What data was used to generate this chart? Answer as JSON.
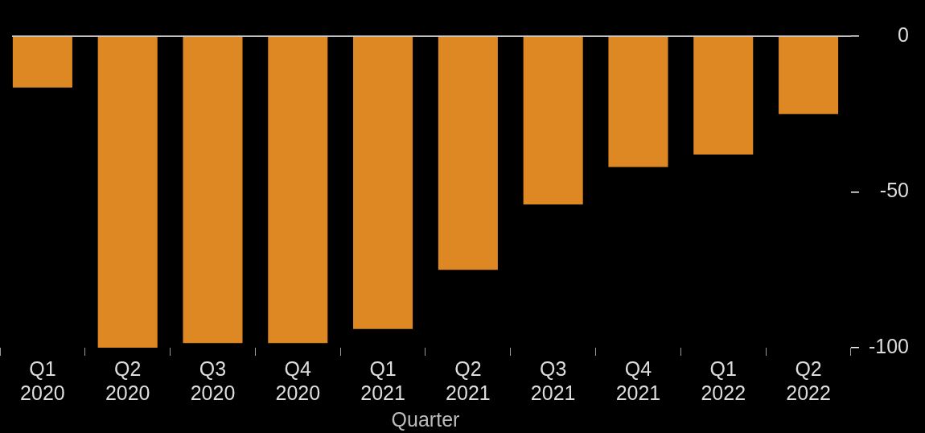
{
  "chart_data": {
    "type": "bar",
    "xlabel": "Quarter",
    "categories": [
      "Q1 2020",
      "Q2 2020",
      "Q3 2020",
      "Q4 2020",
      "Q1 2021",
      "Q2 2021",
      "Q3 2021",
      "Q4 2021",
      "Q1 2022",
      "Q2 2022"
    ],
    "values": [
      -16.5,
      -100,
      -98.5,
      -98.5,
      -94,
      -75,
      -54,
      -42,
      -38,
      -25
    ],
    "color": "#dd8822",
    "ylim": [
      -100,
      0
    ],
    "yticks": [
      -100,
      -50,
      0
    ],
    "grid": false,
    "legend": false
  }
}
